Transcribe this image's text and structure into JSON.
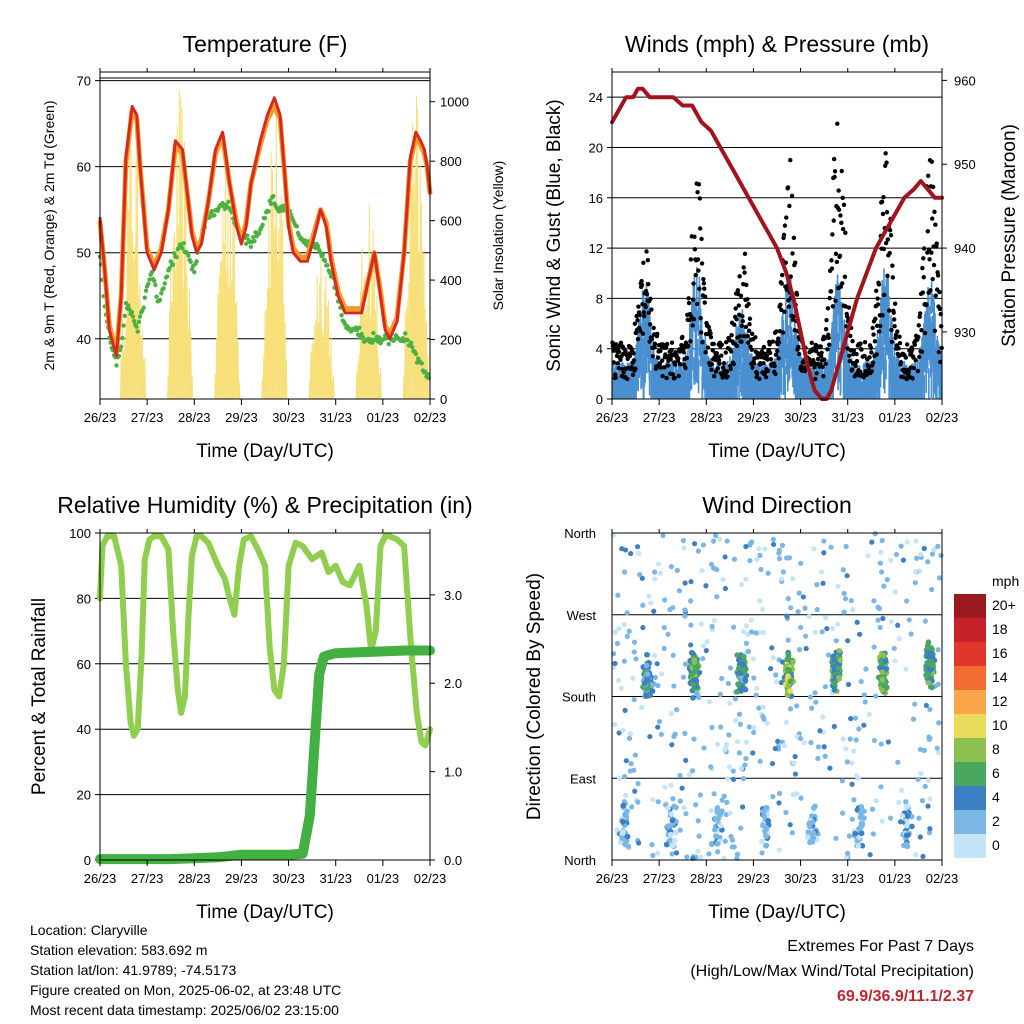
{
  "time_ticks": [
    "26/23",
    "27/23",
    "28/23",
    "29/23",
    "30/23",
    "31/23",
    "01/23",
    "02/23"
  ],
  "info": {
    "location": "Location: Claryville",
    "elevation": "Station elevation: 583.692 m",
    "latlon": "Station lat/lon: 41.9789; -74.5173",
    "created": "Figure created on Mon, 2025-06-02, at 23:48 UTC",
    "recent": "Most recent data timestamp: 2025/06/02 23:15:00"
  },
  "extremes": {
    "title": "Extremes For Past 7 Days",
    "subtitle": "(High/Low/Max Wind/Total Precipitation)",
    "values": "69.9/36.9/11.1/2.37"
  },
  "colors": {
    "temp_2m": "#d62a1e",
    "temp_9m": "#f39c2a",
    "dewpoint": "#4cb142",
    "solar": "#f7e07a",
    "gust": "#000000",
    "wind": "#4a90d0",
    "pressure": "#a2141d",
    "rh": "#8fce4f",
    "precip": "#44b043"
  },
  "chart_data": [
    {
      "type": "line",
      "title": "Temperature (F)",
      "xlabel": "Time (Day/UTC)",
      "ylabel": "2m & 9m T (Red, Orange) & 2m Td (Green)",
      "ylabel_right": "Solar Insolation (Yellow)",
      "x_ticks": [
        "26/23",
        "27/23",
        "28/23",
        "29/23",
        "30/23",
        "31/23",
        "01/23",
        "02/23"
      ],
      "xlim_days": [
        0,
        7
      ],
      "ylim": [
        33,
        71
      ],
      "yticks": [
        40,
        50,
        60,
        70
      ],
      "ylim_right": [
        0,
        1100
      ],
      "yticks_right": [
        0,
        200,
        400,
        600,
        800,
        1000
      ],
      "grid": "horizontal",
      "series": [
        {
          "name": "2m T",
          "color": "#d62a1e",
          "x": [
            0,
            0.1,
            0.2,
            0.35,
            0.45,
            0.55,
            0.68,
            0.78,
            0.85,
            1.0,
            1.15,
            1.3,
            1.45,
            1.6,
            1.75,
            1.85,
            1.95,
            2.05,
            2.15,
            2.3,
            2.45,
            2.6,
            2.75,
            2.9,
            3.0,
            3.1,
            3.2,
            3.4,
            3.55,
            3.7,
            3.82,
            3.92,
            4.0,
            4.1,
            4.25,
            4.4,
            4.55,
            4.68,
            4.8,
            4.9,
            5.05,
            5.2,
            5.4,
            5.55,
            5.7,
            5.82,
            5.95,
            6.05,
            6.15,
            6.3,
            6.45,
            6.58,
            6.7,
            6.8,
            6.88,
            6.94,
            7.0
          ],
          "y": [
            54,
            48,
            41,
            38,
            45,
            61,
            67,
            66,
            60,
            50,
            48,
            50,
            55,
            63,
            62,
            57,
            52,
            50,
            51,
            56,
            62,
            64,
            58,
            53,
            51,
            53,
            58,
            63,
            66,
            68,
            66,
            59,
            53,
            50,
            49,
            49,
            52,
            55,
            53,
            49,
            45,
            43,
            43,
            43,
            47,
            50,
            45,
            41,
            40,
            42,
            50,
            61,
            64,
            63,
            62,
            60,
            57
          ]
        },
        {
          "name": "9m T",
          "color": "#f39c2a",
          "x": [
            0,
            0.1,
            0.2,
            0.35,
            0.45,
            0.55,
            0.68,
            0.78,
            0.85,
            1.0,
            1.15,
            1.3,
            1.45,
            1.6,
            1.75,
            1.85,
            1.95,
            2.05,
            2.15,
            2.3,
            2.45,
            2.6,
            2.75,
            2.9,
            3.0,
            3.1,
            3.2,
            3.4,
            3.55,
            3.7,
            3.82,
            3.92,
            4.0,
            4.1,
            4.25,
            4.4,
            4.55,
            4.68,
            4.8,
            4.9,
            5.05,
            5.2,
            5.4,
            5.55,
            5.7,
            5.82,
            5.95,
            6.05,
            6.15,
            6.3,
            6.45,
            6.58,
            6.7,
            6.8,
            6.88,
            6.94,
            7.0
          ],
          "y": [
            53.5,
            48,
            41.5,
            38.5,
            45,
            60.5,
            66.5,
            65.5,
            60,
            50.5,
            48.5,
            50.5,
            55,
            62.5,
            61.5,
            57,
            52.5,
            50.5,
            51.5,
            56,
            61.5,
            63.5,
            58,
            53.5,
            51.5,
            53.5,
            58,
            62.5,
            65.5,
            67,
            65.5,
            59,
            53.5,
            50.5,
            49.5,
            49.5,
            52.5,
            55,
            53.5,
            49.5,
            45.5,
            43.5,
            43.5,
            43.5,
            47,
            50,
            45.5,
            41.5,
            40.5,
            42.5,
            50,
            60.5,
            63.5,
            62.5,
            61.5,
            60,
            57
          ]
        },
        {
          "name": "2m Td",
          "color": "#4cb142",
          "x": [
            0,
            0.1,
            0.2,
            0.35,
            0.45,
            0.55,
            0.68,
            0.8,
            0.95,
            1.1,
            1.25,
            1.4,
            1.55,
            1.7,
            1.85,
            2.0,
            2.15,
            2.3,
            2.45,
            2.6,
            2.75,
            2.9,
            3.05,
            3.2,
            3.35,
            3.5,
            3.65,
            3.8,
            3.95,
            4.1,
            4.25,
            4.4,
            4.55,
            4.7,
            4.85,
            5.0,
            5.15,
            5.3,
            5.45,
            5.6,
            5.75,
            5.9,
            6.05,
            6.2,
            6.35,
            6.5,
            6.62,
            6.72,
            6.82,
            6.9,
            7.0
          ],
          "y": [
            50,
            44,
            40,
            37,
            39,
            44,
            43,
            41,
            45,
            48,
            44,
            47,
            49,
            51,
            50,
            48,
            52,
            54,
            55,
            56,
            55,
            53,
            52,
            51,
            52,
            54,
            56,
            55,
            55,
            54,
            52,
            51,
            51,
            50,
            48,
            46,
            42,
            41,
            41,
            40,
            40,
            40,
            40,
            40,
            40,
            40,
            39,
            38,
            37,
            36,
            36
          ]
        }
      ],
      "solar": {
        "name": "Solar Insolation",
        "color": "#f7e07a",
        "day_peaks": [
          {
            "day_center": 0.7,
            "peak_wm2": 1000
          },
          {
            "day_center": 1.7,
            "peak_wm2": 1050
          },
          {
            "day_center": 2.7,
            "peak_wm2": 1000
          },
          {
            "day_center": 3.7,
            "peak_wm2": 1080
          },
          {
            "day_center": 4.7,
            "peak_wm2": 620
          },
          {
            "day_center": 5.7,
            "peak_wm2": 760
          },
          {
            "day_center": 6.7,
            "peak_wm2": 1070
          }
        ]
      }
    },
    {
      "type": "scatter",
      "title": "Winds (mph) & Pressure (mb)",
      "xlabel": "Time (Day/UTC)",
      "ylabel": "Sonic Wind & Gust (Blue, Black)",
      "ylabel_right": "Station Pressure (Maroon)",
      "x_ticks": [
        "26/23",
        "27/23",
        "28/23",
        "29/23",
        "30/23",
        "31/23",
        "01/23",
        "02/23"
      ],
      "xlim_days": [
        0,
        7
      ],
      "ylim": [
        0,
        26
      ],
      "yticks": [
        0,
        4,
        8,
        12,
        16,
        20,
        24
      ],
      "ylim_right": [
        922,
        961
      ],
      "yticks_right": [
        930,
        940,
        950,
        960
      ],
      "grid": "horizontal",
      "pressure": {
        "name": "Station Pressure",
        "color": "#a2141d",
        "x": [
          0,
          0.1,
          0.2,
          0.3,
          0.45,
          0.55,
          0.65,
          0.8,
          0.95,
          1.1,
          1.3,
          1.5,
          1.7,
          1.9,
          2.1,
          2.3,
          2.5,
          2.7,
          2.9,
          3.1,
          3.3,
          3.5,
          3.7,
          3.85,
          4.0,
          4.15,
          4.3,
          4.45,
          4.55,
          4.65,
          4.8,
          5.0,
          5.2,
          5.4,
          5.6,
          5.8,
          6.0,
          6.2,
          6.4,
          6.55,
          6.7,
          6.85,
          7.0
        ],
        "y": [
          955,
          956,
          957,
          958,
          958,
          959,
          959,
          958,
          958,
          958,
          958,
          957,
          957,
          955,
          954,
          952,
          950,
          948,
          946,
          944,
          942,
          940,
          937,
          934,
          930,
          926,
          923,
          922,
          922,
          923,
          926,
          930,
          934,
          937,
          940,
          942,
          944,
          946,
          947,
          948,
          947,
          946,
          946
        ]
      },
      "wind_bursts": [
        {
          "day_center": 0.7,
          "wind_max": 10,
          "gust_max": 12
        },
        {
          "day_center": 1.8,
          "wind_max": 11,
          "gust_max": 18
        },
        {
          "day_center": 2.75,
          "wind_max": 8,
          "gust_max": 13
        },
        {
          "day_center": 3.75,
          "wind_max": 11,
          "gust_max": 20
        },
        {
          "day_center": 4.8,
          "wind_max": 10,
          "gust_max": 24
        },
        {
          "day_center": 5.8,
          "wind_max": 11,
          "gust_max": 20
        },
        {
          "day_center": 6.75,
          "wind_max": 10,
          "gust_max": 20
        }
      ]
    },
    {
      "type": "line",
      "title": "Relative Humidity (%) & Precipitation (in)",
      "xlabel": "Time (Day/UTC)",
      "ylabel": "Percent & Total Rainfall",
      "x_ticks": [
        "26/23",
        "27/23",
        "28/23",
        "29/23",
        "30/23",
        "31/23",
        "01/23",
        "02/23"
      ],
      "xlim_days": [
        0,
        7
      ],
      "ylim": [
        0,
        100
      ],
      "yticks": [
        0,
        20,
        40,
        60,
        80,
        100
      ],
      "ylim_right": [
        0,
        3.7
      ],
      "yticks_right": [
        "0.0",
        "1.0",
        "2.0",
        "3.0"
      ],
      "grid": "horizontal",
      "series": [
        {
          "name": "Relative Humidity",
          "color": "#8fce4f",
          "x": [
            0,
            0.05,
            0.15,
            0.3,
            0.45,
            0.55,
            0.65,
            0.72,
            0.8,
            0.88,
            0.95,
            1.05,
            1.15,
            1.3,
            1.45,
            1.55,
            1.65,
            1.72,
            1.8,
            1.88,
            1.95,
            2.05,
            2.15,
            2.3,
            2.5,
            2.65,
            2.75,
            2.85,
            2.95,
            3.05,
            3.2,
            3.35,
            3.5,
            3.6,
            3.7,
            3.8,
            3.9,
            4.0,
            4.15,
            4.3,
            4.5,
            4.7,
            4.85,
            5.0,
            5.15,
            5.3,
            5.5,
            5.65,
            5.75,
            5.85,
            5.95,
            6.05,
            6.15,
            6.3,
            6.45,
            6.6,
            6.72,
            6.82,
            6.9,
            7.0
          ],
          "y": [
            80,
            96,
            99,
            99,
            90,
            60,
            42,
            38,
            40,
            62,
            92,
            98,
            99,
            99,
            95,
            70,
            52,
            45,
            50,
            75,
            93,
            99,
            99,
            97,
            90,
            86,
            80,
            75,
            90,
            98,
            99,
            95,
            90,
            65,
            52,
            50,
            60,
            90,
            97,
            96,
            92,
            94,
            88,
            90,
            85,
            84,
            90,
            78,
            64,
            70,
            96,
            99,
            99,
            98,
            96,
            65,
            45,
            36,
            35,
            40
          ]
        },
        {
          "name": "Total Precipitation",
          "color": "#44b043",
          "x": [
            0,
            0.5,
            1.0,
            1.5,
            2.0,
            2.5,
            3.0,
            3.5,
            4.0,
            4.3,
            4.45,
            4.55,
            4.65,
            4.75,
            4.85,
            5.0,
            5.5,
            6.0,
            6.5,
            7.0
          ],
          "y": [
            0.01,
            0.01,
            0.01,
            0.01,
            0.02,
            0.03,
            0.06,
            0.06,
            0.06,
            0.07,
            0.5,
            1.3,
            2.1,
            2.3,
            2.32,
            2.34,
            2.35,
            2.36,
            2.37,
            2.37
          ]
        }
      ]
    },
    {
      "type": "scatter",
      "title": "Wind Direction",
      "xlabel": "Time (Day/UTC)",
      "ylabel": "Direction (Colored By Speed)",
      "x_ticks": [
        "26/23",
        "27/23",
        "28/23",
        "29/23",
        "30/23",
        "31/23",
        "01/23",
        "02/23"
      ],
      "xlim_days": [
        0,
        7
      ],
      "y_ticks": [
        "North",
        "East",
        "South",
        "West",
        "North"
      ],
      "ylim_degrees": [
        0,
        360
      ],
      "grid": "horizontal",
      "colorbar": {
        "title": "mph",
        "labels": [
          "20+",
          "18",
          "16",
          "14",
          "12",
          "10",
          "8",
          "6",
          "4",
          "2",
          "0"
        ],
        "colors": [
          "#9b1a1f",
          "#c42128",
          "#e0362b",
          "#f26b2f",
          "#f9a54a",
          "#e8dc5a",
          "#8cc152",
          "#49a85e",
          "#3d7fc3",
          "#7ab6e6",
          "#c4e4f7"
        ]
      },
      "clusters": [
        {
          "day_center": 0.75,
          "direction_deg": 200,
          "speed_mph": 5
        },
        {
          "day_center": 1.75,
          "direction_deg": 205,
          "speed_mph": 8
        },
        {
          "day_center": 2.75,
          "direction_deg": 205,
          "speed_mph": 6
        },
        {
          "day_center": 3.75,
          "direction_deg": 205,
          "speed_mph": 9
        },
        {
          "day_center": 4.75,
          "direction_deg": 210,
          "speed_mph": 7
        },
        {
          "day_center": 5.75,
          "direction_deg": 210,
          "speed_mph": 8
        },
        {
          "day_center": 6.75,
          "direction_deg": 215,
          "speed_mph": 7
        }
      ]
    }
  ]
}
